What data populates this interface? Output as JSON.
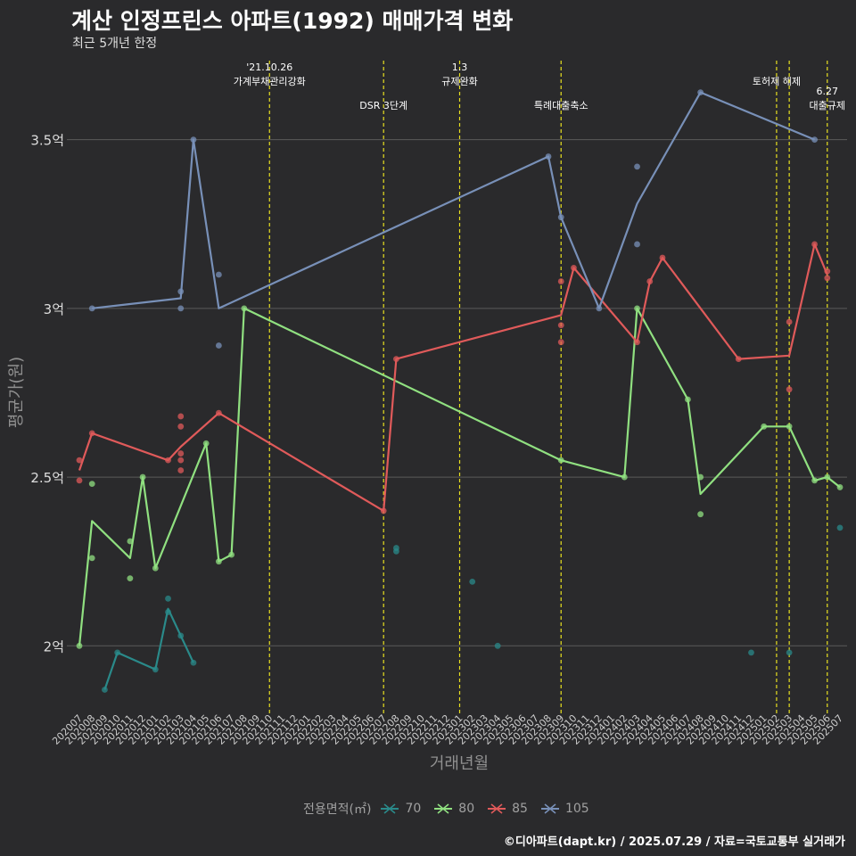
{
  "header": {
    "title": "계산 인정프린스 아파트(1992) 매매가격 변화",
    "subtitle": "최근 5개년 한정"
  },
  "caption": "©디아파트(dapt.kr) / 2025.07.29 / 자료=국토교통부 실거래가",
  "legend": {
    "title": "전용면적(㎡)",
    "items": [
      {
        "label": "70",
        "color": "#2a8a8a"
      },
      {
        "label": "80",
        "color": "#90e080"
      },
      {
        "label": "85",
        "color": "#e05a5a"
      },
      {
        "label": "105",
        "color": "#7890b8"
      }
    ]
  },
  "colors": {
    "background": "#2a2a2c",
    "grid": "#5a5a5a",
    "event_line": "#e8e020"
  },
  "chart_data": {
    "type": "line",
    "xlabel": "거래년월",
    "ylabel": "평균가(원)",
    "ylim": [
      1.8,
      3.75
    ],
    "yticks": [
      {
        "value": 2.0,
        "label": "2억"
      },
      {
        "value": 2.5,
        "label": "2.5억"
      },
      {
        "value": 3.0,
        "label": "3억"
      },
      {
        "value": 3.5,
        "label": "3.5억"
      }
    ],
    "categories": [
      "202007",
      "202008",
      "202009",
      "202010",
      "202011",
      "202012",
      "202101",
      "202102",
      "202103",
      "202104",
      "202105",
      "202106",
      "202107",
      "202108",
      "202109",
      "202110",
      "202111",
      "202112",
      "202201",
      "202202",
      "202203",
      "202204",
      "202205",
      "202206",
      "202207",
      "202208",
      "202209",
      "202210",
      "202211",
      "202212",
      "202301",
      "202302",
      "202303",
      "202304",
      "202305",
      "202306",
      "202307",
      "202308",
      "202309",
      "202310",
      "202311",
      "202312",
      "202401",
      "202402",
      "202403",
      "202404",
      "202405",
      "202406",
      "202407",
      "202408",
      "202409",
      "202410",
      "202411",
      "202412",
      "202501",
      "202502",
      "202503",
      "202504",
      "202505",
      "202506",
      "202507"
    ],
    "events": [
      {
        "month": "202110",
        "lines": [
          "'21.10.26",
          "가계부채관리강화"
        ],
        "row": 0
      },
      {
        "month": "202207",
        "lines": [
          "DSR 3단계"
        ],
        "row": 1
      },
      {
        "month": "202301",
        "lines": [
          "1.3",
          "규제완화"
        ],
        "row": 0
      },
      {
        "month": "202309",
        "lines": [
          "특례대출축소"
        ],
        "row": 1
      },
      {
        "month": "202502",
        "lines": [
          "토허제 해제"
        ],
        "row": 0
      },
      {
        "month": "202503",
        "lines": [],
        "row": 0
      },
      {
        "month": "202506",
        "lines": [
          "6.27",
          "대출규제"
        ],
        "row": 1
      }
    ],
    "series": [
      {
        "name": "70",
        "color": "#2a8a8a",
        "line": [
          [
            "202009",
            1.87
          ],
          [
            "202010",
            1.98
          ],
          [
            "202101",
            1.93
          ],
          [
            "202102",
            2.11
          ],
          [
            "202104",
            1.95
          ]
        ],
        "points": [
          [
            "202009",
            1.87
          ],
          [
            "202010",
            1.98
          ],
          [
            "202101",
            1.93
          ],
          [
            "202102",
            2.14
          ],
          [
            "202102",
            2.1
          ],
          [
            "202103",
            2.03
          ],
          [
            "202104",
            1.95
          ],
          [
            "202208",
            2.29
          ],
          [
            "202208",
            2.28
          ],
          [
            "202302",
            2.19
          ],
          [
            "202304",
            2.0
          ],
          [
            "202412",
            1.98
          ],
          [
            "202503",
            1.98
          ],
          [
            "202507",
            2.35
          ]
        ]
      },
      {
        "name": "80",
        "color": "#90e080",
        "line": [
          [
            "202007",
            2.0
          ],
          [
            "202008",
            2.37
          ],
          [
            "202011",
            2.26
          ],
          [
            "202012",
            2.5
          ],
          [
            "202101",
            2.23
          ],
          [
            "202105",
            2.6
          ],
          [
            "202106",
            2.25
          ],
          [
            "202107",
            2.27
          ],
          [
            "202108",
            3.0
          ],
          [
            "202309",
            2.55
          ],
          [
            "202402",
            2.5
          ],
          [
            "202403",
            3.0
          ],
          [
            "202407",
            2.73
          ],
          [
            "202408",
            2.45
          ],
          [
            "202501",
            2.65
          ],
          [
            "202503",
            2.65
          ],
          [
            "202505",
            2.49
          ],
          [
            "202506",
            2.5
          ],
          [
            "202507",
            2.47
          ]
        ],
        "points": [
          [
            "202007",
            2.0
          ],
          [
            "202008",
            2.48
          ],
          [
            "202008",
            2.26
          ],
          [
            "202011",
            2.31
          ],
          [
            "202011",
            2.2
          ],
          [
            "202012",
            2.5
          ],
          [
            "202101",
            2.23
          ],
          [
            "202105",
            2.6
          ],
          [
            "202106",
            2.25
          ],
          [
            "202107",
            2.27
          ],
          [
            "202108",
            3.0
          ],
          [
            "202309",
            2.55
          ],
          [
            "202402",
            2.5
          ],
          [
            "202403",
            3.0
          ],
          [
            "202407",
            2.73
          ],
          [
            "202408",
            2.5
          ],
          [
            "202408",
            2.39
          ],
          [
            "202501",
            2.65
          ],
          [
            "202503",
            2.65
          ],
          [
            "202505",
            2.49
          ],
          [
            "202506",
            2.5
          ],
          [
            "202507",
            2.47
          ]
        ]
      },
      {
        "name": "85",
        "color": "#e05a5a",
        "line": [
          [
            "202007",
            2.52
          ],
          [
            "202008",
            2.63
          ],
          [
            "202102",
            2.55
          ],
          [
            "202103",
            2.59
          ],
          [
            "202106",
            2.69
          ],
          [
            "202207",
            2.4
          ],
          [
            "202208",
            2.85
          ],
          [
            "202309",
            2.98
          ],
          [
            "202310",
            3.12
          ],
          [
            "202403",
            2.9
          ],
          [
            "202404",
            3.08
          ],
          [
            "202405",
            3.15
          ],
          [
            "202411",
            2.85
          ],
          [
            "202503",
            2.86
          ],
          [
            "202505",
            3.19
          ],
          [
            "202506",
            3.1
          ]
        ],
        "points": [
          [
            "202007",
            2.55
          ],
          [
            "202007",
            2.49
          ],
          [
            "202008",
            2.63
          ],
          [
            "202102",
            2.55
          ],
          [
            "202103",
            2.68
          ],
          [
            "202103",
            2.65
          ],
          [
            "202103",
            2.57
          ],
          [
            "202103",
            2.55
          ],
          [
            "202103",
            2.52
          ],
          [
            "202106",
            2.69
          ],
          [
            "202207",
            2.4
          ],
          [
            "202208",
            2.85
          ],
          [
            "202309",
            3.08
          ],
          [
            "202309",
            2.95
          ],
          [
            "202309",
            2.9
          ],
          [
            "202310",
            3.12
          ],
          [
            "202403",
            2.9
          ],
          [
            "202404",
            3.08
          ],
          [
            "202405",
            3.15
          ],
          [
            "202411",
            2.85
          ],
          [
            "202503",
            2.96
          ],
          [
            "202503",
            2.76
          ],
          [
            "202505",
            3.19
          ],
          [
            "202506",
            3.11
          ],
          [
            "202506",
            3.09
          ]
        ]
      },
      {
        "name": "105",
        "color": "#7890b8",
        "line": [
          [
            "202008",
            3.0
          ],
          [
            "202103",
            3.03
          ],
          [
            "202104",
            3.5
          ],
          [
            "202106",
            3.0
          ],
          [
            "202308",
            3.45
          ],
          [
            "202309",
            3.27
          ],
          [
            "202312",
            3.0
          ],
          [
            "202403",
            3.31
          ],
          [
            "202408",
            3.64
          ],
          [
            "202505",
            3.5
          ]
        ],
        "points": [
          [
            "202008",
            3.0
          ],
          [
            "202103",
            3.05
          ],
          [
            "202103",
            3.0
          ],
          [
            "202104",
            3.5
          ],
          [
            "202106",
            3.1
          ],
          [
            "202106",
            2.89
          ],
          [
            "202308",
            3.45
          ],
          [
            "202309",
            3.27
          ],
          [
            "202312",
            3.0
          ],
          [
            "202403",
            3.42
          ],
          [
            "202403",
            3.19
          ],
          [
            "202408",
            3.64
          ],
          [
            "202505",
            3.5
          ]
        ]
      }
    ]
  }
}
